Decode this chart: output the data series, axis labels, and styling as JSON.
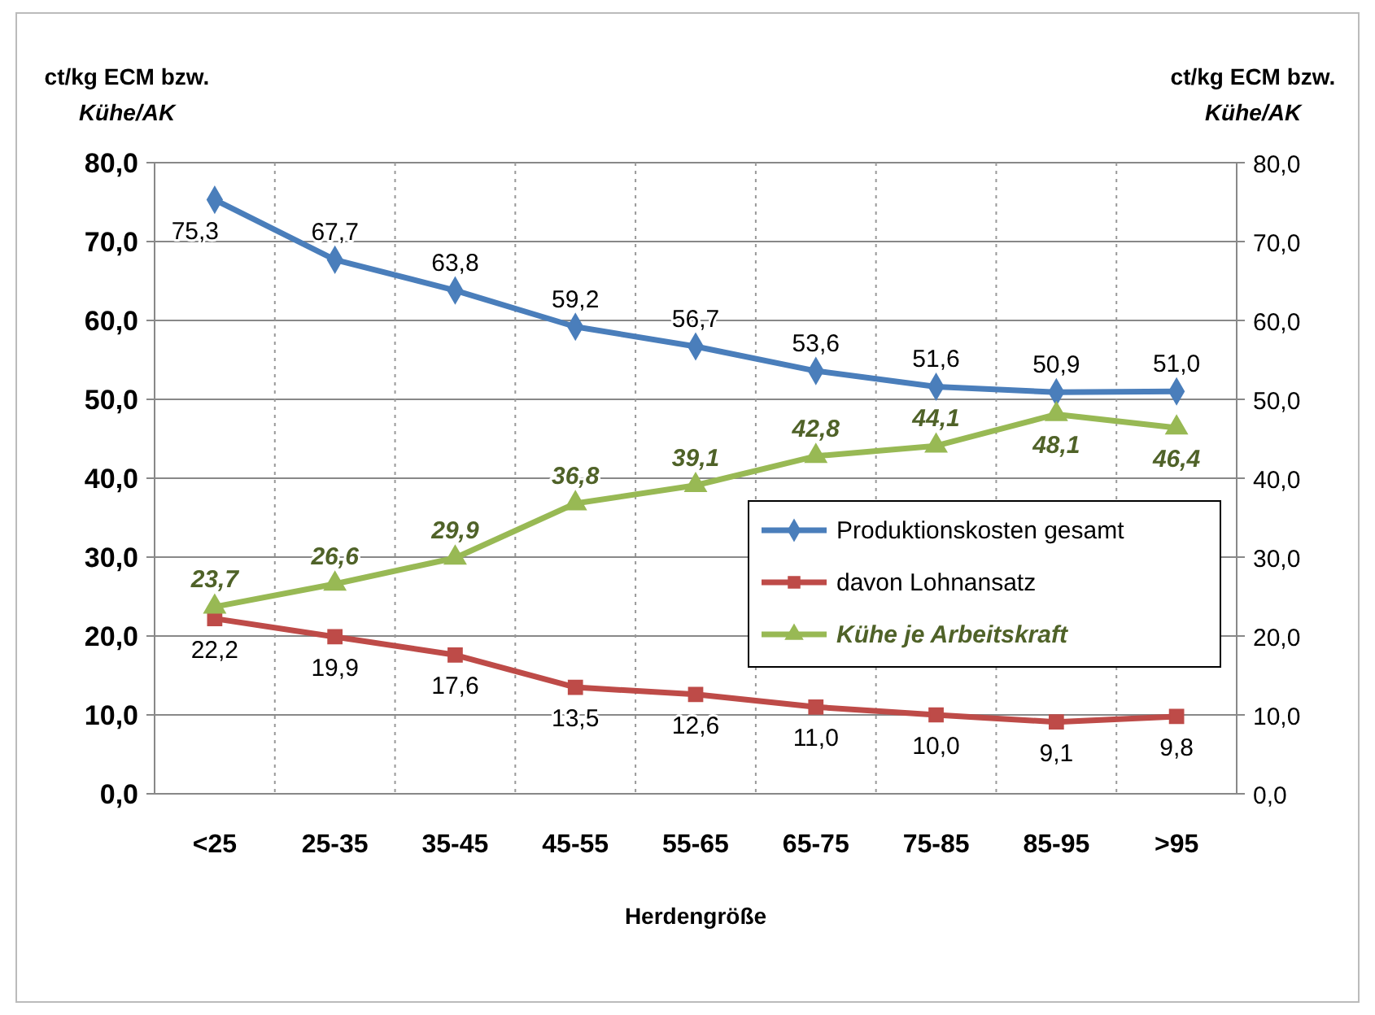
{
  "chart_data": {
    "type": "line",
    "xlabel": "Herdengröße",
    "ylabel": "ct/kg ECM bzw.\nKühe/AK",
    "y2label": "ct/kg ECM bzw.\nKühe/AK",
    "categories": [
      "<25",
      "25-35",
      "35-45",
      "45-55",
      "55-65",
      "65-75",
      "75-85",
      "85-95",
      ">95"
    ],
    "ylim": [
      0,
      80
    ],
    "yticks": [
      {
        "value": 0,
        "label": "0,0"
      },
      {
        "value": 10,
        "label": "10,0"
      },
      {
        "value": 20,
        "label": "20,0"
      },
      {
        "value": 30,
        "label": "30,0"
      },
      {
        "value": 40,
        "label": "40,0"
      },
      {
        "value": 50,
        "label": "50,0"
      },
      {
        "value": 60,
        "label": "60,0"
      },
      {
        "value": 70,
        "label": "70,0"
      },
      {
        "value": 80,
        "label": "80,0"
      }
    ],
    "y2lim": [
      0,
      80
    ],
    "y2ticks": [
      {
        "value": 0,
        "label": "0,0"
      },
      {
        "value": 10,
        "label": "10,0"
      },
      {
        "value": 20,
        "label": "20,0"
      },
      {
        "value": 30,
        "label": "30,0"
      },
      {
        "value": 40,
        "label": "40,0"
      },
      {
        "value": 50,
        "label": "50,0"
      },
      {
        "value": 60,
        "label": "60,0"
      },
      {
        "value": 70,
        "label": "70,0"
      },
      {
        "value": 80,
        "label": "80,0"
      }
    ],
    "grid": true,
    "legend": "right",
    "series": [
      {
        "name": "Produktionskosten gesamt",
        "color": "#4a7ebb",
        "marker": "diamond",
        "values": [
          75.3,
          67.7,
          63.8,
          59.2,
          56.7,
          53.6,
          51.6,
          50.9,
          51.0
        ],
        "value_labels": [
          "75,3",
          "67,7",
          "63,8",
          "59,2",
          "56,7",
          "53,6",
          "51,6",
          "50,9",
          "51,0"
        ]
      },
      {
        "name": "davon Lohnansatz",
        "color": "#be4b48",
        "marker": "square",
        "values": [
          22.2,
          19.9,
          17.6,
          13.5,
          12.6,
          11.0,
          10.0,
          9.1,
          9.8
        ],
        "value_labels": [
          "22,2",
          "19,9",
          "17,6",
          "13,5",
          "12,6",
          "11,0",
          "10,0",
          "9,1",
          "9,8"
        ]
      },
      {
        "name": "Kühe je Arbeitskraft",
        "color": "#98b954",
        "marker": "triangle",
        "axis": "y2",
        "values": [
          23.7,
          26.6,
          29.9,
          36.8,
          39.1,
          42.8,
          44.1,
          48.1,
          46.4
        ],
        "value_labels": [
          "23,7",
          "26,6",
          "29,9",
          "36,8",
          "39,1",
          "42,8",
          "44,1",
          "48,1",
          "46,4"
        ]
      }
    ]
  }
}
